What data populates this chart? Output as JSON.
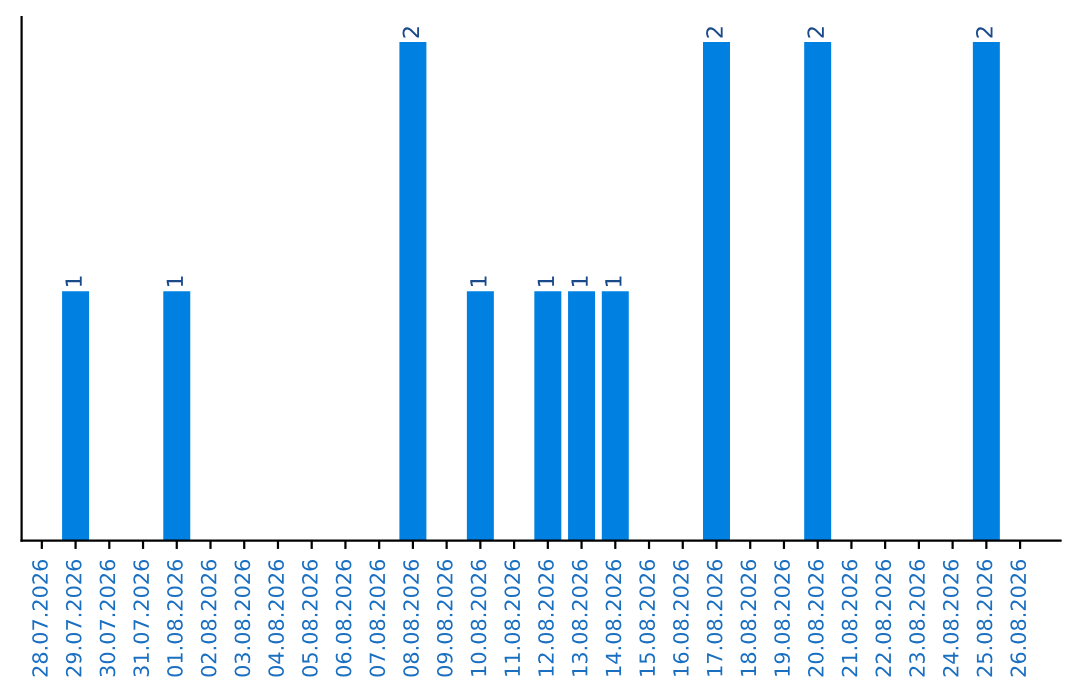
{
  "chart_data": {
    "type": "bar",
    "categories": [
      "28.07.2026",
      "29.07.2026",
      "30.07.2026",
      "31.07.2026",
      "01.08.2026",
      "02.08.2026",
      "03.08.2026",
      "04.08.2026",
      "05.08.2026",
      "06.08.2026",
      "07.08.2026",
      "08.08.2026",
      "09.08.2026",
      "10.08.2026",
      "11.08.2026",
      "12.08.2026",
      "13.08.2026",
      "14.08.2026",
      "15.08.2026",
      "16.08.2026",
      "17.08.2026",
      "18.08.2026",
      "19.08.2026",
      "20.08.2026",
      "21.08.2026",
      "22.08.2026",
      "23.08.2026",
      "24.08.2026",
      "25.08.2026",
      "26.08.2026"
    ],
    "values": [
      0,
      1,
      0,
      0,
      1,
      0,
      0,
      0,
      0,
      0,
      0,
      2,
      0,
      1,
      0,
      1,
      1,
      1,
      0,
      0,
      2,
      0,
      0,
      2,
      0,
      0,
      0,
      0,
      2,
      0
    ],
    "value_labels": [
      null,
      "1",
      null,
      null,
      "1",
      null,
      null,
      null,
      null,
      null,
      null,
      "2",
      null,
      "1",
      null,
      "1",
      "1",
      "1",
      null,
      null,
      "2",
      null,
      null,
      "2",
      null,
      null,
      null,
      null,
      "2",
      null
    ],
    "color": "#0080e0",
    "tick_labels": "x",
    "grid": false,
    "legend": false
  }
}
